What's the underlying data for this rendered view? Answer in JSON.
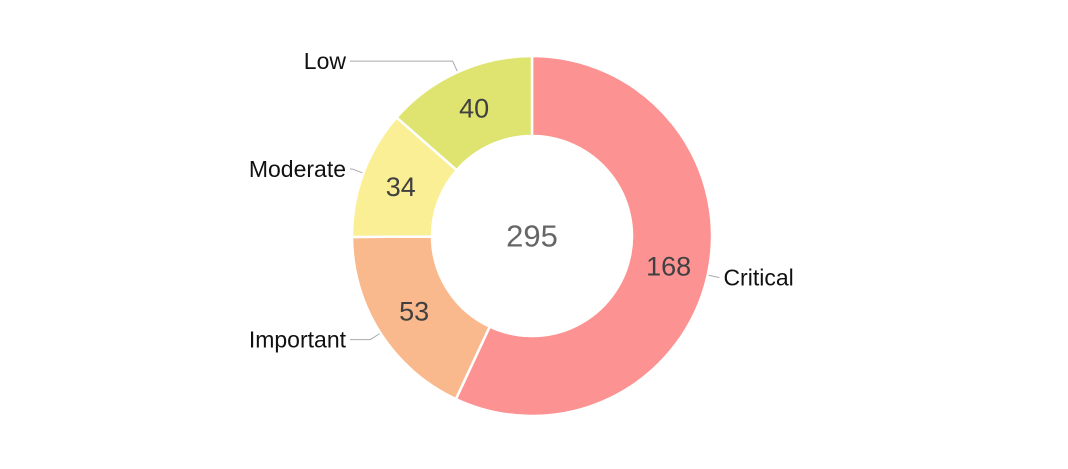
{
  "chart_data": {
    "type": "pie",
    "subtype": "donut",
    "title": "",
    "center_label": "295",
    "total": 295,
    "categories": [
      "Critical",
      "Important",
      "Moderate",
      "Low"
    ],
    "values": [
      168,
      53,
      34,
      40
    ],
    "segments": [
      {
        "label": "Critical",
        "value": 168,
        "color": "#fc9292"
      },
      {
        "label": "Important",
        "value": 53,
        "color": "#fab98c"
      },
      {
        "label": "Moderate",
        "value": 34,
        "color": "#faef94"
      },
      {
        "label": "Low",
        "value": 40,
        "color": "#dfe470"
      }
    ],
    "layout_hints": {
      "start_angle": "top",
      "direction": "clockwise",
      "labels": "outside-with-leader-lines",
      "value_labels": "inside-ring",
      "legend": "none",
      "grid": "off"
    },
    "style": {
      "category_label_color": "#111111",
      "value_label_color": "#404040",
      "center_label_color": "#666666",
      "leader_line_color": "#aaaaaa",
      "segment_gap_color": "#ffffff",
      "background_color": "#ffffff"
    }
  }
}
